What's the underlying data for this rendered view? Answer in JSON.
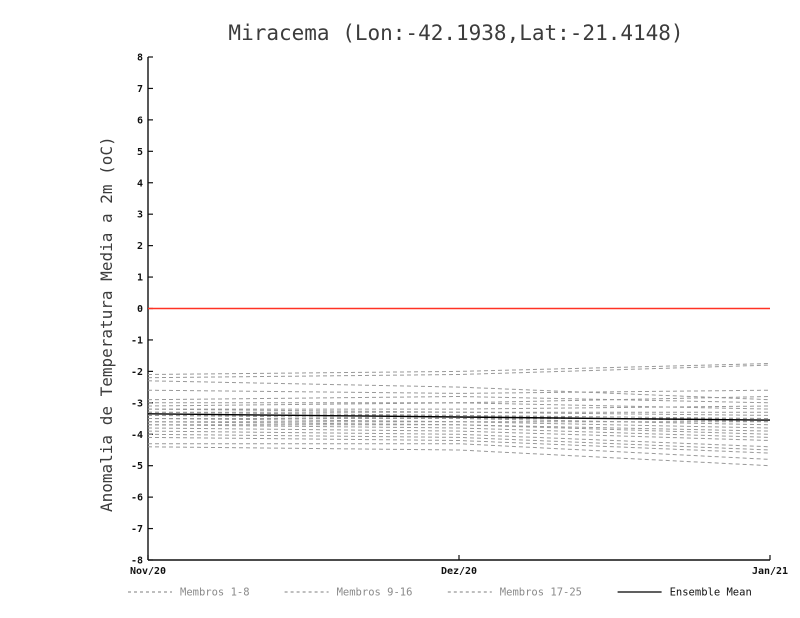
{
  "chart_data": {
    "type": "line",
    "title": "Miracema (Lon:-42.1938,Lat:-21.4148)",
    "ylabel": "Anomalia de Temperatura Media a 2m (oC)",
    "xlabel": "",
    "ylim": [
      -8,
      8
    ],
    "ytick_step": 1,
    "x_categories": [
      "Nov/20",
      "Dez/20",
      "Jan/21"
    ],
    "grid": false,
    "zero_line": {
      "y": 0,
      "color": "#ff3224"
    },
    "member_color": "#999999",
    "member_dash": "4,3",
    "member_values": [
      [
        -2.1,
        -2.0,
        -1.75
      ],
      [
        -2.2,
        -2.1,
        -1.8
      ],
      [
        -2.3,
        -2.5,
        -2.9
      ],
      [
        -2.6,
        -2.7,
        -2.6
      ],
      [
        -2.9,
        -2.8,
        -3.0
      ],
      [
        -3.0,
        -3.0,
        -2.8
      ],
      [
        -3.1,
        -3.0,
        -3.2
      ],
      [
        -3.2,
        -3.2,
        -3.1
      ],
      [
        -3.2,
        -3.3,
        -3.4
      ],
      [
        -3.3,
        -3.3,
        -3.3
      ],
      [
        -3.3,
        -3.4,
        -3.5
      ],
      [
        -3.4,
        -3.4,
        -3.6
      ],
      [
        -3.4,
        -3.5,
        -3.5
      ],
      [
        -3.5,
        -3.5,
        -3.7
      ],
      [
        -3.5,
        -3.6,
        -3.8
      ],
      [
        -3.6,
        -3.6,
        -3.6
      ],
      [
        -3.6,
        -3.7,
        -3.9
      ],
      [
        -3.7,
        -3.7,
        -4.0
      ],
      [
        -3.7,
        -3.8,
        -4.1
      ],
      [
        -3.8,
        -3.9,
        -4.2
      ],
      [
        -3.9,
        -4.0,
        -4.4
      ],
      [
        -4.0,
        -4.1,
        -4.5
      ],
      [
        -4.1,
        -4.2,
        -4.6
      ],
      [
        -4.3,
        -4.3,
        -4.8
      ],
      [
        -4.4,
        -4.5,
        -5.0
      ]
    ],
    "series": [
      {
        "name": "Ensemble Mean",
        "style": "solid",
        "color": "#000000",
        "values": [
          -3.35,
          -3.45,
          -3.55
        ]
      }
    ],
    "legend": {
      "position": "bottom",
      "items": [
        {
          "label": "Membros 1-8",
          "style": "dashed",
          "color": "#999999",
          "text_color": "#8a8a8a"
        },
        {
          "label": "Membros 9-16",
          "style": "dashed",
          "color": "#999999",
          "text_color": "#8a8a8a"
        },
        {
          "label": "Membros 17-25",
          "style": "dashed",
          "color": "#999999",
          "text_color": "#8a8a8a"
        },
        {
          "label": "Ensemble Mean",
          "style": "solid",
          "color": "#000000",
          "text_color": "#111111"
        }
      ]
    }
  }
}
